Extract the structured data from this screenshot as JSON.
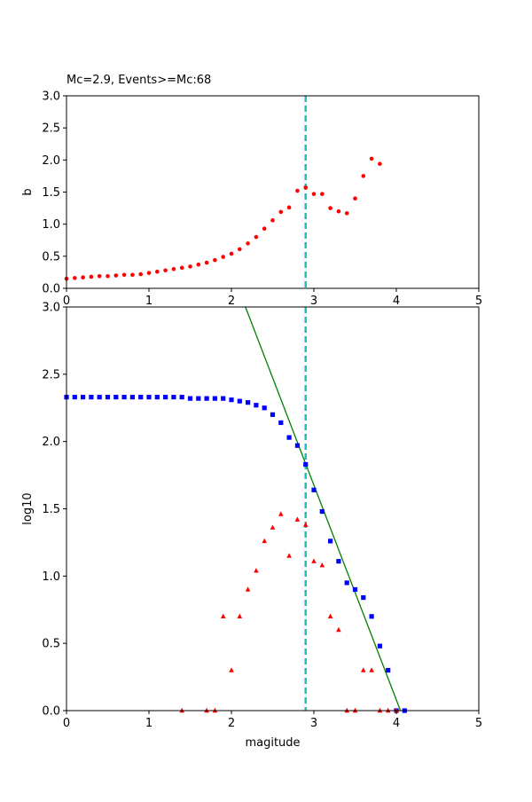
{
  "chart_data": [
    {
      "type": "scatter",
      "title": "Mc=2.9, Events>=Mc:68",
      "xlabel": "",
      "ylabel": "b",
      "xlim": [
        0,
        5
      ],
      "ylim": [
        0,
        3
      ],
      "xticks": [
        "0",
        "1",
        "2",
        "3",
        "4",
        "5"
      ],
      "yticks": [
        "0.0",
        "0.5",
        "1.0",
        "1.5",
        "2.0",
        "2.5",
        "3.0"
      ],
      "vline": {
        "x": 2.9,
        "color": "#1bbfbf",
        "style": "dashed"
      },
      "series": [
        {
          "marker": "circle",
          "color": "#ff0000",
          "points": [
            [
              0.0,
              0.15
            ],
            [
              0.1,
              0.16
            ],
            [
              0.2,
              0.17
            ],
            [
              0.3,
              0.18
            ],
            [
              0.4,
              0.19
            ],
            [
              0.5,
              0.19
            ],
            [
              0.6,
              0.2
            ],
            [
              0.7,
              0.21
            ],
            [
              0.8,
              0.21
            ],
            [
              0.9,
              0.22
            ],
            [
              1.0,
              0.24
            ],
            [
              1.1,
              0.26
            ],
            [
              1.2,
              0.28
            ],
            [
              1.3,
              0.3
            ],
            [
              1.4,
              0.32
            ],
            [
              1.5,
              0.34
            ],
            [
              1.6,
              0.37
            ],
            [
              1.7,
              0.4
            ],
            [
              1.8,
              0.44
            ],
            [
              1.9,
              0.49
            ],
            [
              2.0,
              0.54
            ],
            [
              2.1,
              0.61
            ],
            [
              2.2,
              0.7
            ],
            [
              2.3,
              0.8
            ],
            [
              2.4,
              0.93
            ],
            [
              2.5,
              1.06
            ],
            [
              2.6,
              1.19
            ],
            [
              2.7,
              1.26
            ],
            [
              2.8,
              1.52
            ],
            [
              2.9,
              1.57
            ],
            [
              3.0,
              1.47
            ],
            [
              3.1,
              1.47
            ],
            [
              3.2,
              1.25
            ],
            [
              3.3,
              1.2
            ],
            [
              3.4,
              1.17
            ],
            [
              3.5,
              1.4
            ],
            [
              3.6,
              1.75
            ],
            [
              3.7,
              2.02
            ],
            [
              3.8,
              1.94
            ]
          ]
        }
      ]
    },
    {
      "type": "scatter",
      "title": "",
      "xlabel": "magitude",
      "ylabel": "log10",
      "xlim": [
        0,
        5
      ],
      "ylim": [
        0,
        3
      ],
      "xticks": [
        "0",
        "1",
        "2",
        "3",
        "4",
        "5"
      ],
      "yticks": [
        "0.0",
        "0.5",
        "1.0",
        "1.5",
        "2.0",
        "2.5",
        "3.0"
      ],
      "vline": {
        "x": 2.9,
        "color": "#1bbfbf",
        "style": "dashed"
      },
      "fit_line": {
        "color": "#008000",
        "points": [
          [
            2.17,
            3.0
          ],
          [
            4.05,
            0.0
          ]
        ]
      },
      "series": [
        {
          "marker": "square",
          "color": "#0000ff",
          "points": [
            [
              0.0,
              2.33
            ],
            [
              0.1,
              2.33
            ],
            [
              0.2,
              2.33
            ],
            [
              0.3,
              2.33
            ],
            [
              0.4,
              2.33
            ],
            [
              0.5,
              2.33
            ],
            [
              0.6,
              2.33
            ],
            [
              0.7,
              2.33
            ],
            [
              0.8,
              2.33
            ],
            [
              0.9,
              2.33
            ],
            [
              1.0,
              2.33
            ],
            [
              1.1,
              2.33
            ],
            [
              1.2,
              2.33
            ],
            [
              1.3,
              2.33
            ],
            [
              1.4,
              2.33
            ],
            [
              1.5,
              2.32
            ],
            [
              1.6,
              2.32
            ],
            [
              1.7,
              2.32
            ],
            [
              1.8,
              2.32
            ],
            [
              1.9,
              2.32
            ],
            [
              2.0,
              2.31
            ],
            [
              2.1,
              2.3
            ],
            [
              2.2,
              2.29
            ],
            [
              2.3,
              2.27
            ],
            [
              2.4,
              2.25
            ],
            [
              2.5,
              2.2
            ],
            [
              2.6,
              2.14
            ],
            [
              2.7,
              2.03
            ],
            [
              2.8,
              1.97
            ],
            [
              2.9,
              1.83
            ],
            [
              3.0,
              1.64
            ],
            [
              3.1,
              1.48
            ],
            [
              3.2,
              1.26
            ],
            [
              3.3,
              1.11
            ],
            [
              3.4,
              0.95
            ],
            [
              3.5,
              0.9
            ],
            [
              3.6,
              0.84
            ],
            [
              3.7,
              0.7
            ],
            [
              3.8,
              0.48
            ],
            [
              3.9,
              0.3
            ],
            [
              4.0,
              0.0
            ],
            [
              4.1,
              0.0
            ]
          ]
        },
        {
          "marker": "triangle",
          "color": "#ff0000",
          "points": [
            [
              1.4,
              0.0
            ],
            [
              1.7,
              0.0
            ],
            [
              1.8,
              0.0
            ],
            [
              1.9,
              0.7
            ],
            [
              2.0,
              0.3
            ],
            [
              2.1,
              0.7
            ],
            [
              2.2,
              0.9
            ],
            [
              2.3,
              1.04
            ],
            [
              2.4,
              1.26
            ],
            [
              2.5,
              1.36
            ],
            [
              2.6,
              1.46
            ],
            [
              2.7,
              1.15
            ],
            [
              2.8,
              1.42
            ],
            [
              2.9,
              1.38
            ],
            [
              3.0,
              1.11
            ],
            [
              3.1,
              1.08
            ],
            [
              3.2,
              0.7
            ],
            [
              3.3,
              0.6
            ],
            [
              3.4,
              0.0
            ],
            [
              3.5,
              0.0
            ],
            [
              3.6,
              0.3
            ],
            [
              3.7,
              0.3
            ],
            [
              3.8,
              0.0
            ],
            [
              3.9,
              0.0
            ],
            [
              4.0,
              0.0
            ]
          ]
        }
      ]
    }
  ]
}
